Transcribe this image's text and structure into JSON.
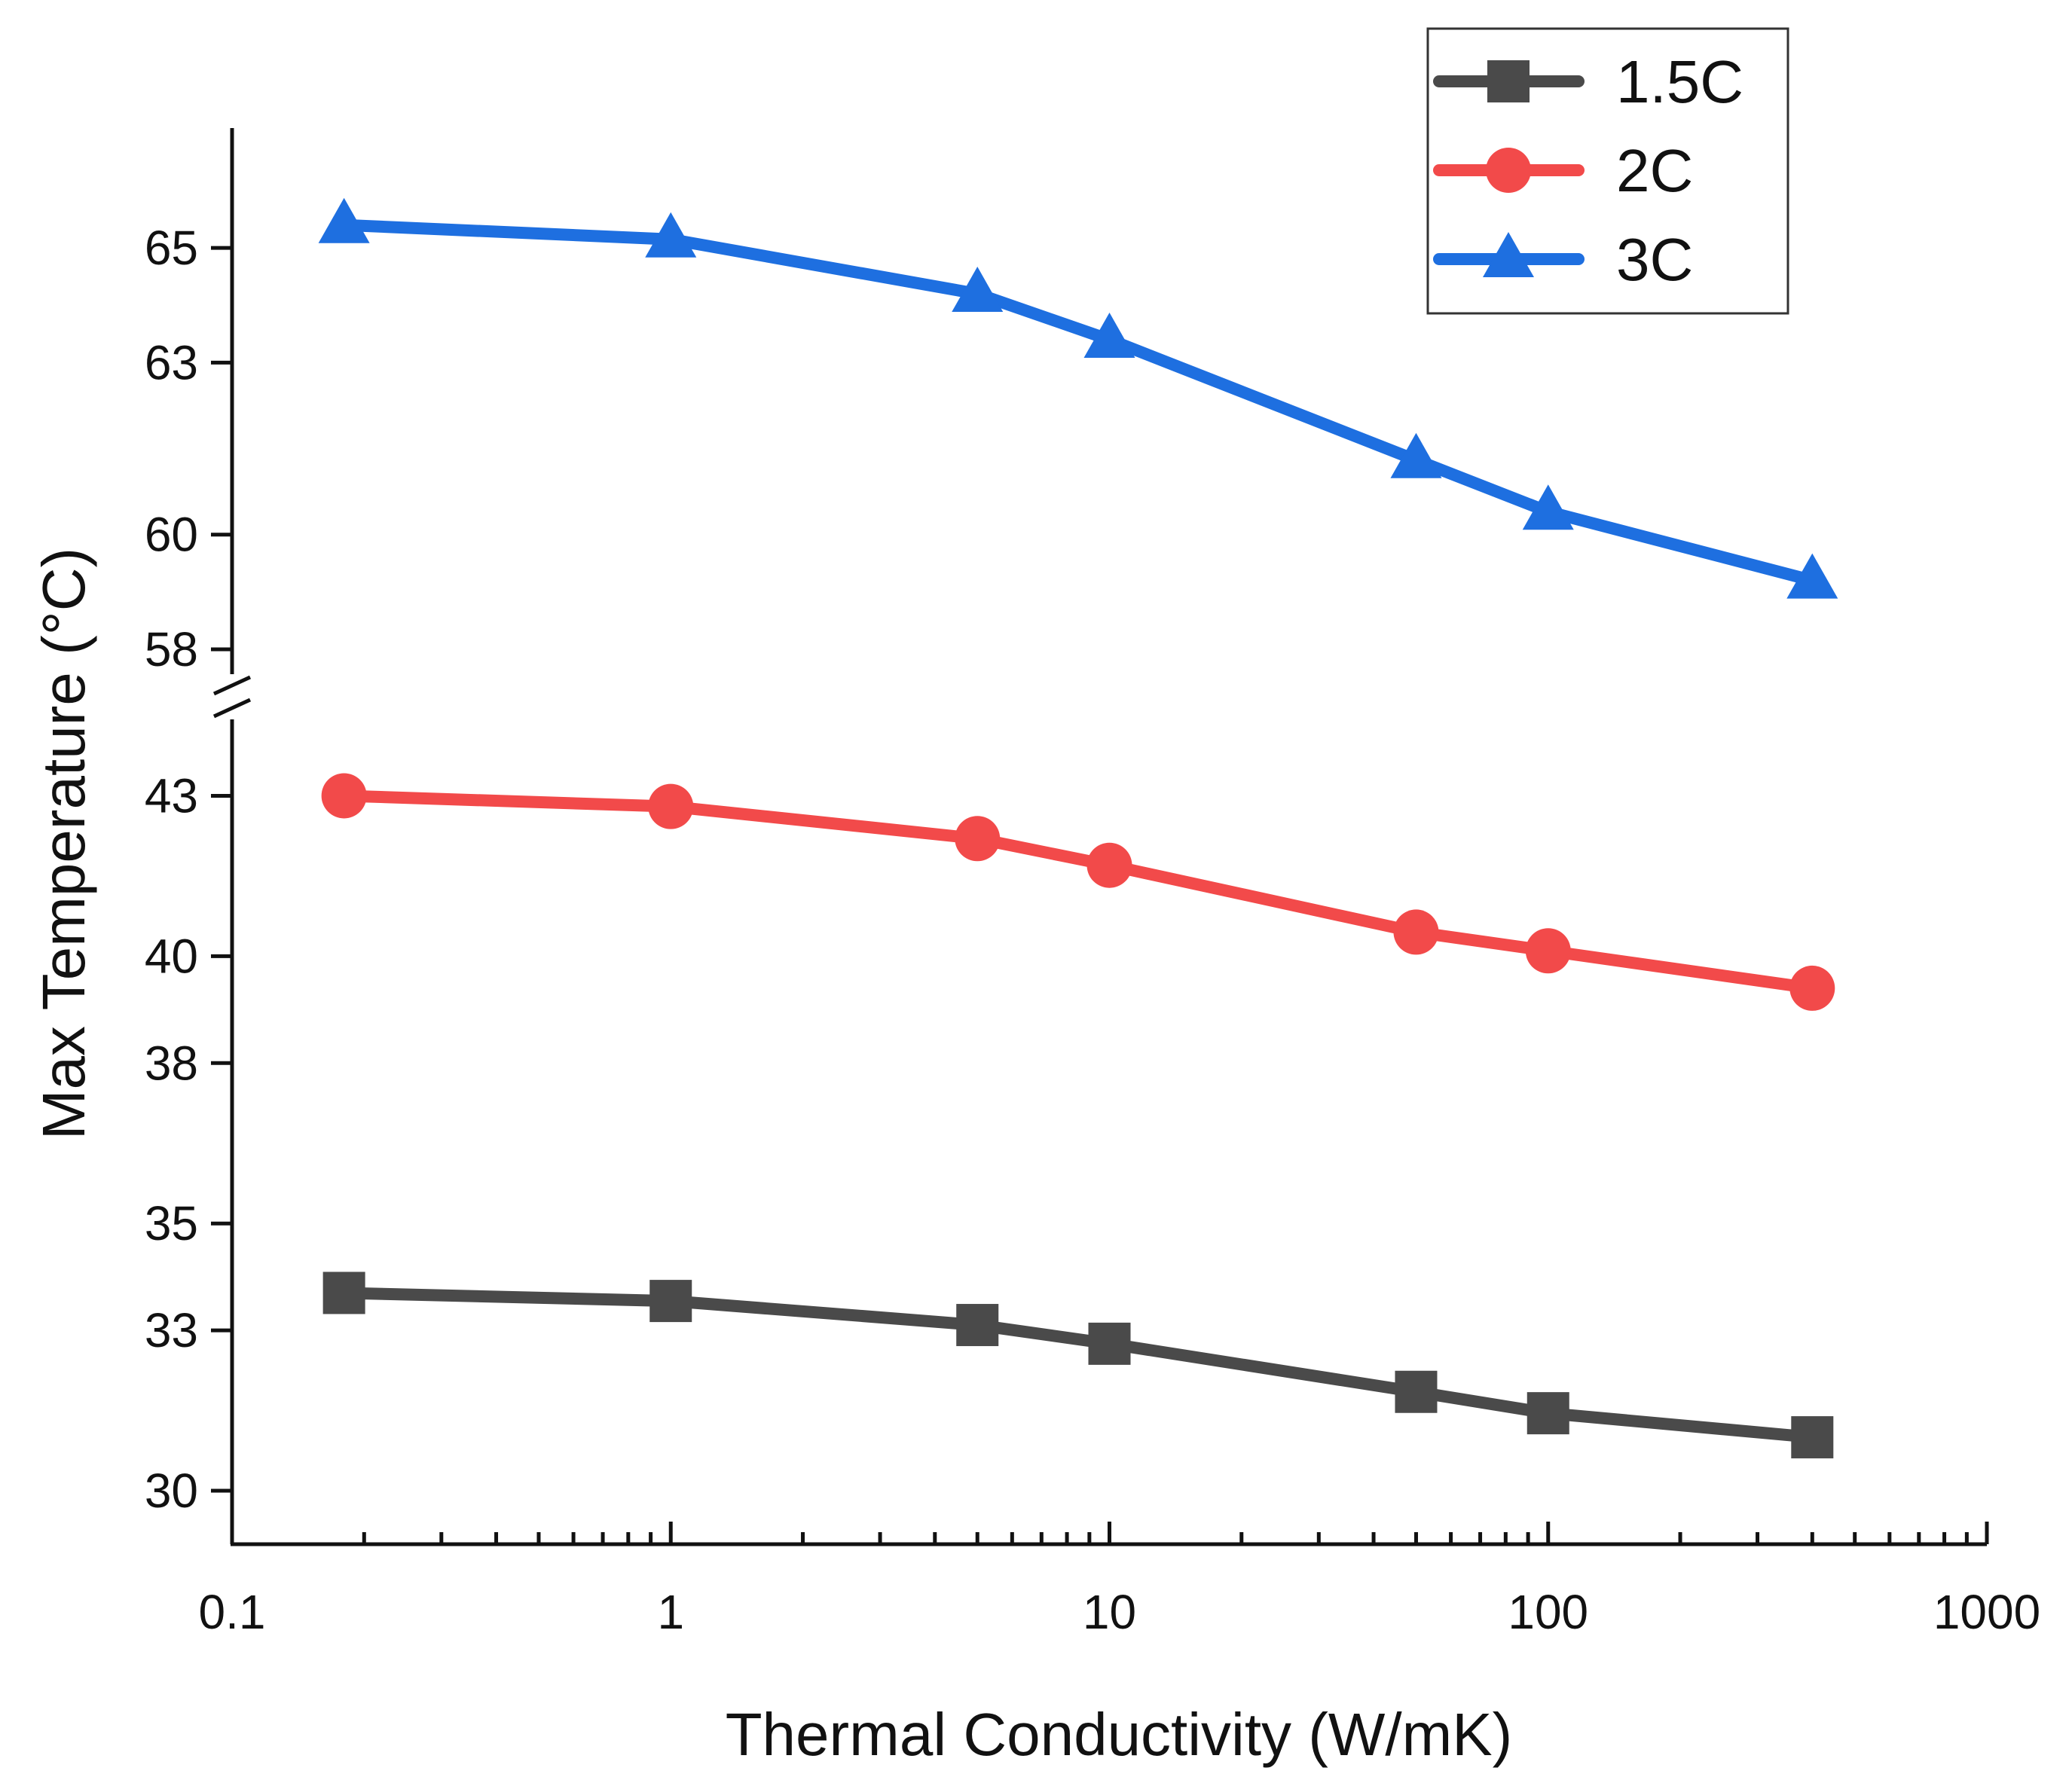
{
  "chart_data": {
    "type": "line",
    "title": "",
    "xlabel": "Thermal Conductivity (W/mK)",
    "ylabel": "Max Temperature (°C)",
    "x_scale": "log",
    "xlim": [
      0.1,
      1000
    ],
    "x_ticks": [
      0.1,
      1,
      10,
      100,
      1000
    ],
    "x_tick_labels": [
      "0.1",
      "1",
      "10",
      "100",
      "1000"
    ],
    "y_axis_break": true,
    "y_segments": [
      {
        "range": [
          29,
          44.5
        ],
        "ticks": [
          30,
          33,
          35,
          38,
          40,
          43
        ],
        "tick_labels": [
          "30",
          "33",
          "35",
          "38",
          "40",
          "43"
        ]
      },
      {
        "range": [
          57.5,
          66.5
        ],
        "ticks": [
          58,
          60,
          63,
          65
        ],
        "tick_labels": [
          "58",
          "60",
          "63",
          "65"
        ]
      }
    ],
    "grid": false,
    "legend_position": "top-right",
    "x": [
      0.18,
      1,
      5,
      10,
      50,
      100,
      400
    ],
    "series": [
      {
        "name": "1.5C",
        "color": "#4a4a4a",
        "marker": "square",
        "values": [
          33.7,
          33.55,
          33.1,
          32.75,
          31.85,
          31.45,
          31.0
        ]
      },
      {
        "name": "2C",
        "color": "#f24a4a",
        "marker": "circle",
        "values": [
          43.0,
          42.8,
          42.2,
          41.7,
          40.45,
          40.1,
          39.4
        ]
      },
      {
        "name": "3C",
        "color": "#1e6fe0",
        "marker": "triangle",
        "values": [
          65.4,
          65.15,
          64.2,
          63.4,
          61.3,
          60.4,
          59.2
        ]
      }
    ]
  }
}
